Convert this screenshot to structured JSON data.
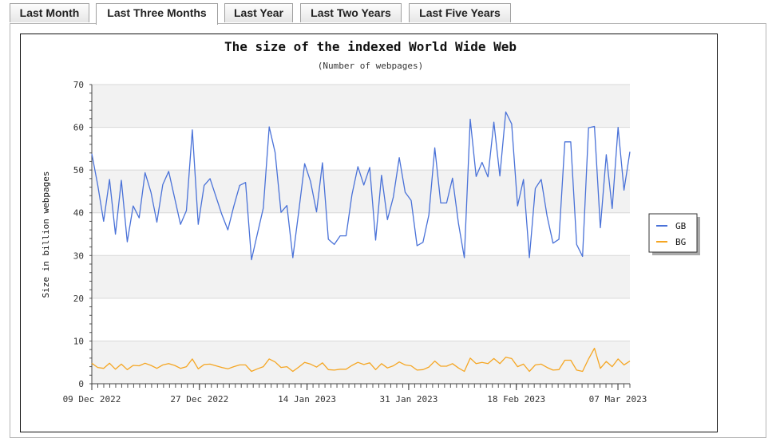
{
  "tabs": [
    {
      "label": "Last Month",
      "active": false
    },
    {
      "label": "Last Three Months",
      "active": true
    },
    {
      "label": "Last Year",
      "active": false
    },
    {
      "label": "Last Two Years",
      "active": false
    },
    {
      "label": "Last Five Years",
      "active": false
    }
  ],
  "chart_data": {
    "type": "line",
    "title": "The size of the indexed World Wide Web",
    "subtitle": "(Number of webpages)",
    "xlabel": "",
    "ylabel": "Size in billion webpages",
    "ylim": [
      0,
      70
    ],
    "yticks": [
      0,
      10,
      20,
      30,
      40,
      50,
      60,
      70
    ],
    "x_start": "09 Dec 2022",
    "x_end": "09 Mar 2023",
    "x_ticks": [
      {
        "date": "09 Dec 2022",
        "label": "09 Dec 2022"
      },
      {
        "date": "27 Dec 2022",
        "label": "27 Dec 2022"
      },
      {
        "date": "14 Jan 2023",
        "label": "14 Jan 2023"
      },
      {
        "date": "31 Jan 2023",
        "label": "31 Jan 2023"
      },
      {
        "date": "18 Feb 2023",
        "label": "18 Feb 2023"
      },
      {
        "date": "07 Mar 2023",
        "label": "07 Mar 2023"
      }
    ],
    "grid": true,
    "legend_position": "right",
    "series": [
      {
        "name": "GB",
        "color": "#4a72d8",
        "values": [
          53.8,
          46.5,
          38,
          47.8,
          35,
          47.6,
          33.2,
          41.6,
          38.8,
          49.4,
          44.8,
          37.8,
          46.6,
          49.7,
          43.5,
          37.3,
          40.5,
          59.4,
          37.3,
          46.4,
          48,
          43.8,
          39.6,
          36,
          41.5,
          46.4,
          47.1,
          29,
          35.1,
          41.1,
          60.1,
          54.1,
          40.1,
          41.7,
          29.5,
          40.3,
          51.5,
          47.3,
          40.2,
          51.7,
          33.8,
          32.6,
          34.6,
          34.6,
          44.3,
          50.8,
          46.5,
          50.6,
          33.6,
          48.8,
          38.4,
          43.7,
          52.9,
          44.8,
          42.9,
          32.3,
          33.1,
          39.5,
          55.2,
          42.3,
          42.3,
          48.1,
          37.6,
          29.5,
          61.9,
          48.5,
          51.8,
          48.4,
          61.2,
          48.6,
          63.6,
          60.8,
          41.6,
          47.8,
          29.5,
          45.7,
          47.8,
          39.2,
          32.9,
          33.8,
          56.6,
          56.6,
          32.6,
          29.8,
          59.9,
          60.2,
          36.5,
          53.6,
          41,
          60,
          45.3,
          54.3
        ]
      },
      {
        "name": "BG",
        "color": "#f5a623",
        "values": [
          4.8,
          3.8,
          3.6,
          4.8,
          3.4,
          4.6,
          3.3,
          4.3,
          4.2,
          4.8,
          4.3,
          3.6,
          4.4,
          4.7,
          4.3,
          3.6,
          4,
          5.8,
          3.5,
          4.5,
          4.6,
          4.2,
          3.8,
          3.5,
          4,
          4.4,
          4.4,
          2.9,
          3.5,
          4,
          5.8,
          5.1,
          3.8,
          4,
          2.9,
          3.9,
          5,
          4.6,
          3.9,
          4.9,
          3.3,
          3.2,
          3.4,
          3.4,
          4.3,
          5,
          4.5,
          4.9,
          3.3,
          4.7,
          3.7,
          4.2,
          5.1,
          4.4,
          4.2,
          3.2,
          3.3,
          3.9,
          5.3,
          4.1,
          4.1,
          4.7,
          3.7,
          2.9,
          6,
          4.7,
          5,
          4.7,
          5.9,
          4.7,
          6.2,
          5.9,
          4,
          4.6,
          2.9,
          4.4,
          4.6,
          3.8,
          3.2,
          3.3,
          5.5,
          5.5,
          3.2,
          2.9,
          5.8,
          8.3,
          3.6,
          5.2,
          4,
          5.8,
          4.4,
          5.3
        ]
      }
    ]
  }
}
